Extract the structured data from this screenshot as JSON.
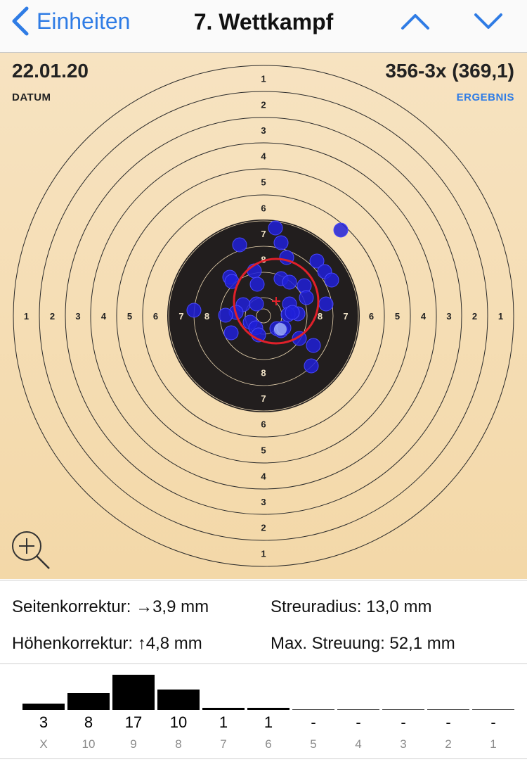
{
  "nav": {
    "back_label": "Einheiten",
    "title": "7. Wettkampf",
    "up_icon": "chevron-up-icon",
    "down_icon": "chevron-down-icon",
    "accent_color": "#2f7ce5"
  },
  "header": {
    "date": "22.01.20",
    "date_caption": "DATUM",
    "result": "356-3x (369,1)",
    "result_caption": "ERGEBNIS"
  },
  "target": {
    "ring_numbers": [
      "1",
      "2",
      "3",
      "4",
      "5",
      "6",
      "7",
      "8"
    ],
    "shot_color": "#2020d8",
    "group_circle_color": "#e0202a",
    "black_color": "#221e1e",
    "paper_color": "#f5deb4",
    "zoom_icon": "zoom-in-icon"
  },
  "stats": {
    "seitenkorrektur": "Seitenkorrektur: →3,9 mm",
    "hoehenkorrektur": "Höhenkorrektur: ↑4,8 mm",
    "streuradius": "Streuradius: 13,0 mm",
    "max_streuung": "Max. Streuung: 52,1 mm"
  },
  "histogram": {
    "rings": [
      "X",
      "10",
      "9",
      "8",
      "7",
      "6",
      "5",
      "4",
      "3",
      "2",
      "1"
    ],
    "counts": [
      "3",
      "8",
      "17",
      "10",
      "1",
      "1",
      "-",
      "-",
      "-",
      "-",
      "-"
    ],
    "values": [
      3,
      8,
      17,
      10,
      1,
      1,
      0,
      0,
      0,
      0,
      0
    ]
  }
}
